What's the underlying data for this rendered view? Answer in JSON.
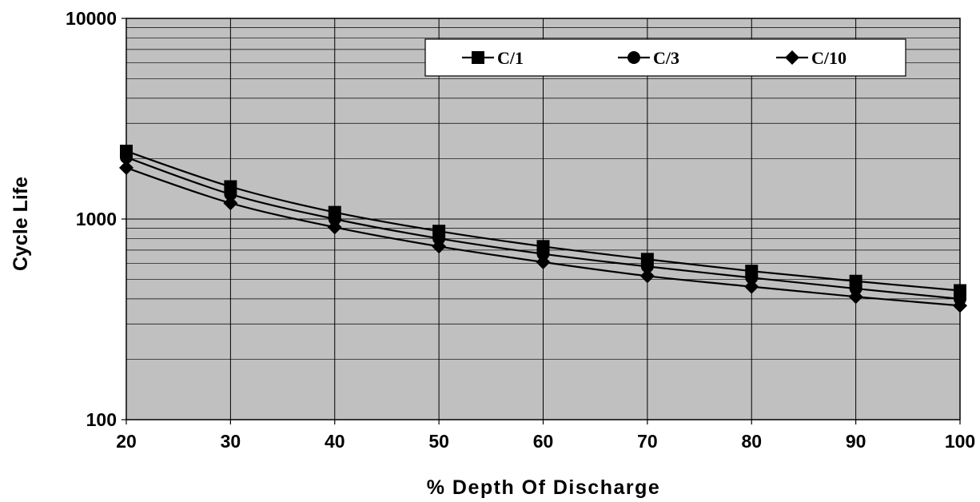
{
  "chart_data": {
    "type": "line",
    "xlabel": "% Depth Of Discharge",
    "ylabel": "Cycle Life",
    "x": [
      20,
      30,
      40,
      50,
      60,
      70,
      80,
      90,
      100
    ],
    "xlim": [
      20,
      100
    ],
    "ylim": [
      100,
      10000
    ],
    "y_scale": "log",
    "x_ticks": [
      "20",
      "30",
      "40",
      "50",
      "60",
      "70",
      "80",
      "90",
      "100"
    ],
    "y_ticks": [
      "100",
      "1000",
      "10000"
    ],
    "grid": true,
    "legend_position": "top-right",
    "plot_background": "#c0c0c0",
    "series": [
      {
        "name": "C/1",
        "marker": "square",
        "color": "#000000",
        "values": [
          2180,
          1450,
          1080,
          870,
          730,
          630,
          550,
          490,
          440
        ]
      },
      {
        "name": "C/3",
        "marker": "circle",
        "color": "#000000",
        "values": [
          2030,
          1330,
          1000,
          800,
          670,
          580,
          510,
          450,
          400
        ]
      },
      {
        "name": "C/10",
        "marker": "diamond",
        "color": "#000000",
        "values": [
          1800,
          1200,
          910,
          730,
          610,
          520,
          460,
          410,
          370
        ]
      }
    ]
  }
}
